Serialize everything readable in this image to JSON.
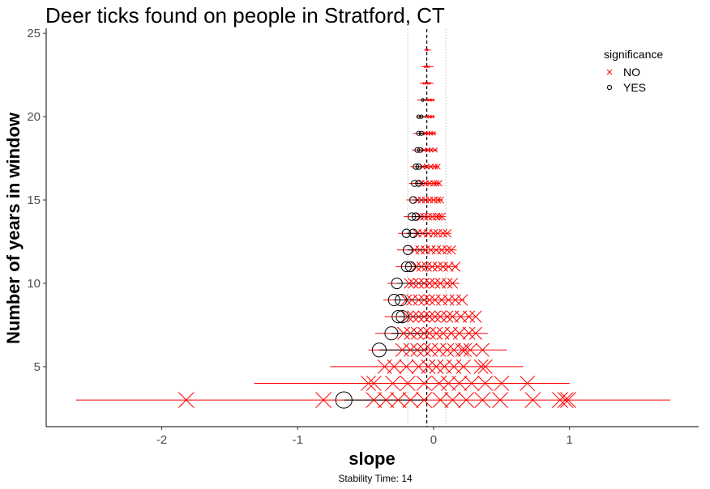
{
  "chart_data": {
    "type": "scatter",
    "title": "Deer ticks found on people in Stratford, CT",
    "xlabel": "slope",
    "ylabel": "Number of years in window",
    "caption": "Stability Time: 14",
    "xlim": [
      -2.85,
      1.95
    ],
    "ylim": [
      1.4,
      25.3
    ],
    "x_ticks": [
      -2,
      -1,
      0,
      1
    ],
    "x_tick_labels": [
      "-2",
      "-1",
      "0",
      "1"
    ],
    "y_ticks": [
      5,
      10,
      15,
      20,
      25
    ],
    "y_tick_labels": [
      "5",
      "10",
      "15",
      "20",
      "25"
    ],
    "reference_lines": {
      "dashed_x": -0.05,
      "dotted_x": [
        -0.19,
        0.09
      ]
    },
    "grid": false,
    "legend": {
      "title": "significance",
      "position": "top-right",
      "entries": [
        {
          "label": "NO",
          "shape": "cross",
          "color": "#ff0000"
        },
        {
          "label": "YES",
          "shape": "circle",
          "color": "#000000"
        }
      ]
    },
    "colors": {
      "NO": "#ff0000",
      "YES": "#000000"
    },
    "windows": [
      {
        "years": 24,
        "yes": [],
        "no": [
          -0.05
        ],
        "lo": -0.07,
        "hi": -0.02
      },
      {
        "years": 23,
        "yes": [],
        "no": [
          -0.06,
          -0.04
        ],
        "lo": -0.09,
        "hi": -0.0
      },
      {
        "years": 22,
        "yes": [],
        "no": [
          -0.07,
          -0.05,
          -0.03
        ],
        "lo": -0.1,
        "hi": 0.0
      },
      {
        "years": 21,
        "yes": [
          -0.08
        ],
        "no": [
          -0.05,
          -0.03,
          -0.01
        ],
        "lo": -0.12,
        "hi": 0.01
      },
      {
        "years": 20,
        "yes": [
          -0.11,
          -0.09
        ],
        "no": [
          -0.05,
          -0.03,
          -0.01
        ],
        "lo": -0.13,
        "hi": 0.01
      },
      {
        "years": 19,
        "yes": [
          -0.11,
          -0.09
        ],
        "no": [
          -0.06,
          -0.04,
          -0.02,
          0.0
        ],
        "lo": -0.15,
        "hi": 0.02
      },
      {
        "years": 18,
        "yes": [
          -0.12,
          -0.1
        ],
        "no": [
          -0.07,
          -0.04,
          -0.02,
          0.01
        ],
        "lo": -0.16,
        "hi": 0.03
      },
      {
        "years": 17,
        "yes": [
          -0.13,
          -0.11
        ],
        "no": [
          -0.08,
          -0.05,
          -0.02,
          0.01,
          0.03
        ],
        "lo": -0.17,
        "hi": 0.04
      },
      {
        "years": 16,
        "yes": [
          -0.14,
          -0.11
        ],
        "no": [
          -0.09,
          -0.06,
          -0.03,
          0.0,
          0.02,
          0.04
        ],
        "lo": -0.18,
        "hi": 0.05
      },
      {
        "years": 15,
        "yes": [
          -0.15
        ],
        "no": [
          -0.12,
          -0.09,
          -0.06,
          -0.03,
          0.0,
          0.03,
          0.05
        ],
        "lo": -0.2,
        "hi": 0.07
      },
      {
        "years": 14,
        "yes": [
          -0.16,
          -0.13
        ],
        "no": [
          -0.1,
          -0.07,
          -0.04,
          -0.01,
          0.02,
          0.04,
          0.06
        ],
        "lo": -0.22,
        "hi": 0.09
      },
      {
        "years": 13,
        "yes": [
          -0.2,
          -0.15
        ],
        "no": [
          -0.12,
          -0.08,
          -0.04,
          0.0,
          0.03,
          0.07,
          0.1
        ],
        "lo": -0.26,
        "hi": 0.13
      },
      {
        "years": 12,
        "yes": [
          -0.19
        ],
        "no": [
          -0.14,
          -0.1,
          -0.06,
          -0.02,
          0.02,
          0.06,
          0.1,
          0.13
        ],
        "lo": -0.27,
        "hi": 0.17
      },
      {
        "years": 11,
        "yes": [
          -0.2,
          -0.17
        ],
        "no": [
          -0.13,
          -0.09,
          -0.05,
          -0.01,
          0.03,
          0.07,
          0.11,
          0.16
        ],
        "lo": -0.28,
        "hi": 0.18
      },
      {
        "years": 10,
        "yes": [
          -0.27
        ],
        "no": [
          -0.18,
          -0.15,
          -0.11,
          -0.07,
          -0.03,
          0.01,
          0.05,
          0.1,
          0.14
        ],
        "lo": -0.34,
        "hi": 0.19
      },
      {
        "years": 9,
        "yes": [
          -0.29,
          -0.24
        ],
        "no": [
          -0.2,
          -0.16,
          -0.11,
          -0.07,
          -0.03,
          0.01,
          0.06,
          0.11,
          0.16,
          0.21
        ],
        "lo": -0.37,
        "hi": 0.23
      },
      {
        "years": 8,
        "yes": [
          -0.26,
          -0.23
        ],
        "no": [
          -0.19,
          -0.15,
          -0.11,
          -0.07,
          -0.03,
          0.01,
          0.05,
          0.1,
          0.14,
          0.2,
          0.26,
          0.31
        ],
        "lo": -0.36,
        "hi": 0.3
      },
      {
        "years": 7,
        "yes": [
          -0.31
        ],
        "no": [
          -0.22,
          -0.17,
          -0.12,
          -0.07,
          -0.03,
          0.02,
          0.07,
          0.13,
          0.19,
          0.26,
          0.31
        ],
        "lo": -0.43,
        "hi": 0.4
      },
      {
        "years": 6,
        "yes": [
          -0.4
        ],
        "no": [
          -0.23,
          -0.17,
          -0.12,
          -0.07,
          -0.02,
          0.04,
          0.1,
          0.15,
          0.21,
          0.23,
          0.27,
          0.36
        ],
        "lo": -0.48,
        "hi": 0.54
      },
      {
        "years": 5,
        "yes": [],
        "no": [
          -0.36,
          -0.29,
          -0.2,
          -0.11,
          -0.04,
          0.02,
          0.08,
          0.15,
          0.22,
          0.35,
          0.38
        ],
        "lo": -0.76,
        "hi": 0.66
      },
      {
        "years": 4,
        "yes": [],
        "no": [
          -0.48,
          -0.44,
          -0.3,
          -0.19,
          -0.07,
          0.04,
          0.11,
          0.19,
          0.28,
          0.38,
          0.5,
          0.69
        ],
        "lo": -1.32,
        "hi": 1.0
      },
      {
        "years": 3,
        "yes": [
          -0.66
        ],
        "no": [
          -1.82,
          -0.81,
          -0.44,
          -0.35,
          -0.26,
          -0.17,
          -0.07,
          0.05,
          0.14,
          0.24,
          0.36,
          0.49,
          0.73,
          0.93,
          0.97,
          0.99
        ],
        "lo": -2.63,
        "hi": 1.74
      }
    ]
  }
}
